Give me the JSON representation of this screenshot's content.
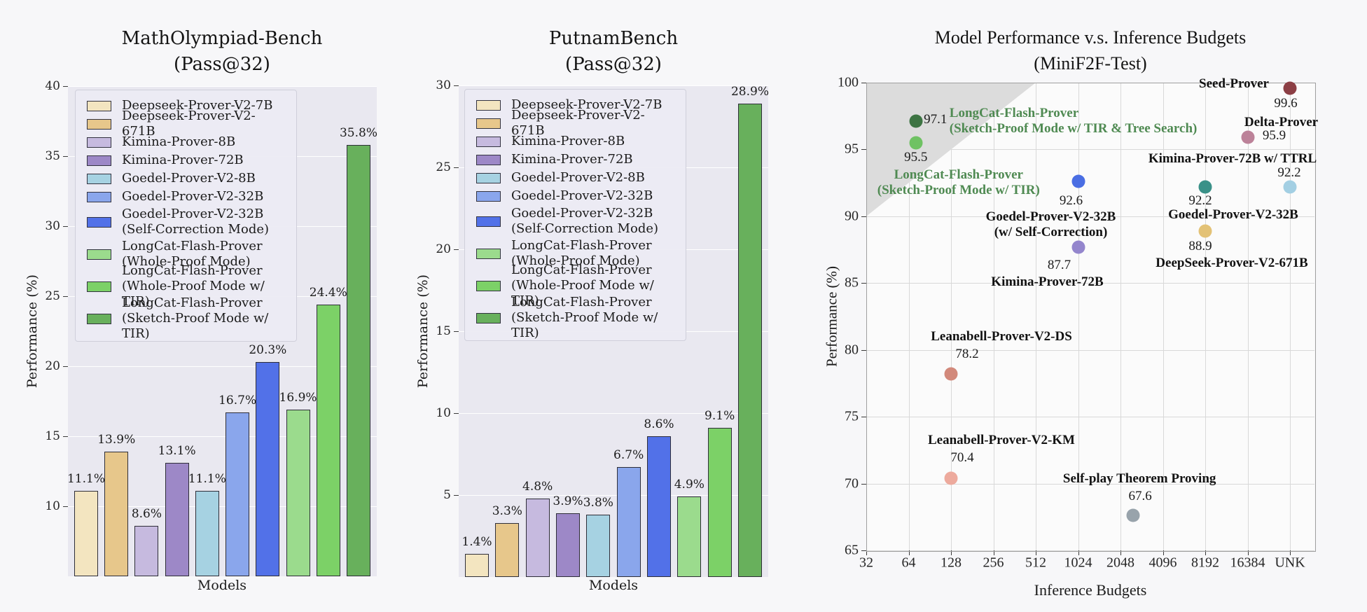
{
  "style": {
    "figure_bg": "#f7f7f9",
    "bar_plot_bg": "#e9e8f0",
    "scatter_plot_bg": "#fbfbfb",
    "grid_white": "#ffffff",
    "grid_gray": "#d9d9d9",
    "region_gray": "#dcdcdc",
    "green_text": "#4f8a52"
  },
  "legend": {
    "entries": [
      {
        "lines": [
          "Deepseek-Prover-V2-7B"
        ],
        "color": "#f3e5c0"
      },
      {
        "lines": [
          "Deepseek-Prover-V2-671B"
        ],
        "color": "#e7c78b"
      },
      {
        "lines": [
          "Kimina-Prover-8B"
        ],
        "color": "#c6badf"
      },
      {
        "lines": [
          "Kimina-Prover-72B"
        ],
        "color": "#9d88c7"
      },
      {
        "lines": [
          "Goedel-Prover-V2-8B"
        ],
        "color": "#a6d2e2"
      },
      {
        "lines": [
          "Goedel-Prover-V2-32B"
        ],
        "color": "#8aa6ec"
      },
      {
        "lines": [
          "Goedel-Prover-V2-32B",
          "(Self-Correction Mode)"
        ],
        "color": "#5271e8"
      },
      {
        "lines": [
          "LongCat-Flash-Prover",
          "(Whole-Proof Mode)"
        ],
        "color": "#9bdb8d"
      },
      {
        "lines": [
          "LongCat-Flash-Prover",
          "(Whole-Proof Mode w/ TIR)"
        ],
        "color": "#7cd167"
      },
      {
        "lines": [
          "LongCat-Flash-Prover",
          "(Sketch-Proof Mode w/ TIR)"
        ],
        "color": "#68b05c"
      }
    ]
  },
  "bar_charts": [
    {
      "title1": "MathOlympiad-Bench",
      "title2": "(Pass@32)",
      "xlabel": "Models",
      "ylabel": "Performance (%)",
      "ymin": 5,
      "ymax": 40,
      "yticks": [
        10,
        15,
        20,
        25,
        30,
        35,
        40
      ],
      "values": [
        11.1,
        13.9,
        8.6,
        13.1,
        11.1,
        16.7,
        20.3,
        16.9,
        24.4,
        35.8
      ],
      "labels": [
        "11.1%",
        "13.9%",
        "8.6%",
        "13.1%",
        "11.1%",
        "16.7%",
        "20.3%",
        "16.9%",
        "24.4%",
        "35.8%"
      ]
    },
    {
      "title1": "PutnamBench",
      "title2": "(Pass@32)",
      "xlabel": "Models",
      "ylabel": "Performance (%)",
      "ymin": 0,
      "ymax": 30,
      "yticks": [
        5,
        10,
        15,
        20,
        25,
        30
      ],
      "values": [
        1.4,
        3.3,
        4.8,
        3.9,
        3.8,
        6.7,
        8.6,
        4.9,
        9.1,
        28.9
      ],
      "labels": [
        "1.4%",
        "3.3%",
        "4.8%",
        "3.9%",
        "3.8%",
        "6.7%",
        "8.6%",
        "4.9%",
        "9.1%",
        "28.9%"
      ]
    }
  ],
  "scatter": {
    "title1": "Model Performance v.s. Inference Budgets",
    "title2": "(MiniF2F-Test)",
    "xlabel": "Inference Budgets",
    "ylabel": "Performance (%)",
    "ymin": 65,
    "ymax": 100,
    "yticks": [
      65,
      70,
      75,
      80,
      85,
      90,
      95,
      100
    ],
    "xticks": [
      "32",
      "64",
      "128",
      "256",
      "512",
      "1024",
      "2048",
      "4096",
      "8192",
      "16384",
      "UNK"
    ],
    "region_polygon_units": [
      [
        0,
        100
      ],
      [
        4,
        100
      ],
      [
        0,
        90
      ]
    ],
    "points": [
      {
        "name_lines": [
          "Seed-Prover"
        ],
        "value": "99.6",
        "budget": "UNK",
        "x_unit": 10,
        "y": 99.6,
        "color": "#8c3f45",
        "name_align": "center",
        "name_dx": -80,
        "name_dy": -6,
        "val_dx": -6,
        "val_dy": 22
      },
      {
        "name_lines": [
          "Delta-Prover"
        ],
        "value": "95.9",
        "budget": "16384",
        "x_unit": 9,
        "y": 95.9,
        "color": "#bc8299",
        "name_align": "center",
        "name_dx": 48,
        "name_dy": -21,
        "val_dx": 38,
        "val_dy": -2
      },
      {
        "name_lines": [
          "Kimina-Prover-72B w/ TTRL"
        ],
        "value": "92.2",
        "budget": "UNK",
        "x_unit": 10,
        "y": 92.2,
        "color": "#a3cfe3",
        "name_align": "center",
        "name_dx": -82,
        "name_dy": -40,
        "val_dx": -1,
        "val_dy": -20
      },
      {
        "name_lines": [
          "Goedel-Prover-V2-32B"
        ],
        "value": "92.2",
        "budget": "8192",
        "x_unit": 8,
        "y": 92.2,
        "color": "#3a9188",
        "name_align": "center",
        "name_dx": 40,
        "name_dy": 40,
        "val_dx": -7,
        "val_dy": 20
      },
      {
        "name_lines": [
          "DeepSeek-Prover-V2-671B"
        ],
        "value": "88.9",
        "budget": "8192",
        "x_unit": 8,
        "y": 88.9,
        "color": "#e3c276",
        "name_align": "center",
        "name_dx": 38,
        "name_dy": 46,
        "val_dx": -7,
        "val_dy": 22
      },
      {
        "name_lines": [
          "Goedel-Prover-V2-32B",
          "(w/ Self-Correction)"
        ],
        "value": "92.6",
        "budget": "1024",
        "x_unit": 5,
        "y": 92.6,
        "color": "#4a6ee3",
        "name_align": "center",
        "name_dx": -39,
        "name_dy": 51,
        "val_dx": -10,
        "val_dy": 28
      },
      {
        "name_lines": [
          "Kimina-Prover-72B"
        ],
        "value": "87.7",
        "budget": "1024",
        "x_unit": 5,
        "y": 87.7,
        "color": "#9486cd",
        "name_align": "center",
        "name_dx": -44,
        "name_dy": 50,
        "val_dx": -27,
        "val_dy": 26
      },
      {
        "name_lines": [
          "LongCat-Flash-Prover",
          "(Sketch-Proof Mode w/ TIR & Tree Search)"
        ],
        "value": "97.1",
        "budget": "~64",
        "x_unit": 1.17,
        "y": 97.1,
        "color": "#3d7443",
        "name_color": "#4f8a52",
        "name_align": "left",
        "name_dx": 48,
        "name_dy": -11,
        "val_dx": 28,
        "val_dy": -2
      },
      {
        "name_lines": [
          "LongCat-Flash-Prover",
          "(Sketch-Proof Mode w/ TIR)"
        ],
        "value": "95.5",
        "budget": "~64",
        "x_unit": 1.17,
        "y": 95.5,
        "color": "#6fc263",
        "name_color": "#4f8a52",
        "name_align": "center",
        "name_dx": 61,
        "name_dy": 46,
        "val_dx": 0,
        "val_dy": 21
      },
      {
        "name_lines": [
          "Leanabell-Prover-V2-DS"
        ],
        "value": "78.2",
        "budget": "128",
        "x_unit": 2,
        "y": 78.2,
        "color": "#d2897b",
        "name_align": "center",
        "name_dx": 72,
        "name_dy": -53,
        "val_dx": 23,
        "val_dy": -28
      },
      {
        "name_lines": [
          "Leanabell-Prover-V2-KM"
        ],
        "value": "70.4",
        "budget": "128",
        "x_unit": 2,
        "y": 70.4,
        "color": "#edaa9d",
        "name_align": "center",
        "name_dx": 72,
        "name_dy": -54,
        "val_dx": 16,
        "val_dy": -29
      },
      {
        "name_lines": [
          "Self-play Theorem Proving"
        ],
        "value": "67.6",
        "budget": "~2500",
        "x_unit": 6.3,
        "y": 67.6,
        "color": "#98a3ab",
        "name_align": "center",
        "name_dx": 9,
        "name_dy": -52,
        "val_dx": 10,
        "val_dy": -27
      }
    ]
  },
  "chart_data": [
    {
      "type": "bar",
      "title": "MathOlympiad-Bench (Pass@32)",
      "xlabel": "Models",
      "ylabel": "Performance (%)",
      "ylim": [
        5,
        40
      ],
      "categories": [
        "Deepseek-Prover-V2-7B",
        "Deepseek-Prover-V2-671B",
        "Kimina-Prover-8B",
        "Kimina-Prover-72B",
        "Goedel-Prover-V2-8B",
        "Goedel-Prover-V2-32B",
        "Goedel-Prover-V2-32B (Self-Correction Mode)",
        "LongCat-Flash-Prover (Whole-Proof Mode)",
        "LongCat-Flash-Prover (Whole-Proof Mode w/ TIR)",
        "LongCat-Flash-Prover (Sketch-Proof Mode w/ TIR)"
      ],
      "values": [
        11.1,
        13.9,
        8.6,
        13.1,
        11.1,
        16.7,
        20.3,
        16.9,
        24.4,
        35.8
      ],
      "legend_position": "upper left",
      "grid": true
    },
    {
      "type": "bar",
      "title": "PutnamBench (Pass@32)",
      "xlabel": "Models",
      "ylabel": "Performance (%)",
      "ylim": [
        0,
        30
      ],
      "categories": [
        "Deepseek-Prover-V2-7B",
        "Deepseek-Prover-V2-671B",
        "Kimina-Prover-8B",
        "Kimina-Prover-72B",
        "Goedel-Prover-V2-8B",
        "Goedel-Prover-V2-32B",
        "Goedel-Prover-V2-32B (Self-Correction Mode)",
        "LongCat-Flash-Prover (Whole-Proof Mode)",
        "LongCat-Flash-Prover (Whole-Proof Mode w/ TIR)",
        "LongCat-Flash-Prover (Sketch-Proof Mode w/ TIR)"
      ],
      "values": [
        1.4,
        3.3,
        4.8,
        3.9,
        3.8,
        6.7,
        8.6,
        4.9,
        9.1,
        28.9
      ],
      "legend_position": "upper left",
      "grid": true
    },
    {
      "type": "scatter",
      "title": "Model Performance v.s. Inference Budgets (MiniF2F-Test)",
      "xlabel": "Inference Budgets",
      "ylabel": "Performance (%)",
      "x_scale": "log2",
      "x_ticks": [
        32,
        64,
        128,
        256,
        512,
        1024,
        2048,
        4096,
        8192,
        16384,
        "UNK"
      ],
      "ylim": [
        65,
        100
      ],
      "grid": true,
      "points": [
        {
          "name": "Seed-Prover",
          "budget": "UNK",
          "performance": 99.6
        },
        {
          "name": "Delta-Prover",
          "budget": 16384,
          "performance": 95.9
        },
        {
          "name": "Kimina-Prover-72B w/ TTRL",
          "budget": "UNK",
          "performance": 92.2
        },
        {
          "name": "Goedel-Prover-V2-32B",
          "budget": 8192,
          "performance": 92.2
        },
        {
          "name": "DeepSeek-Prover-V2-671B",
          "budget": 8192,
          "performance": 88.9
        },
        {
          "name": "Goedel-Prover-V2-32B (w/ Self-Correction)",
          "budget": 1024,
          "performance": 92.6
        },
        {
          "name": "Kimina-Prover-72B",
          "budget": 1024,
          "performance": 87.7
        },
        {
          "name": "LongCat-Flash-Prover (Sketch-Proof Mode w/ TIR & Tree Search)",
          "budget": 72,
          "performance": 97.1
        },
        {
          "name": "LongCat-Flash-Prover (Sketch-Proof Mode w/ TIR)",
          "budget": 72,
          "performance": 95.5
        },
        {
          "name": "Leanabell-Prover-V2-DS",
          "budget": 128,
          "performance": 78.2
        },
        {
          "name": "Leanabell-Prover-V2-KM",
          "budget": 128,
          "performance": 70.4
        },
        {
          "name": "Self-play Theorem Proving",
          "budget": 2500,
          "performance": 67.6
        }
      ]
    }
  ]
}
